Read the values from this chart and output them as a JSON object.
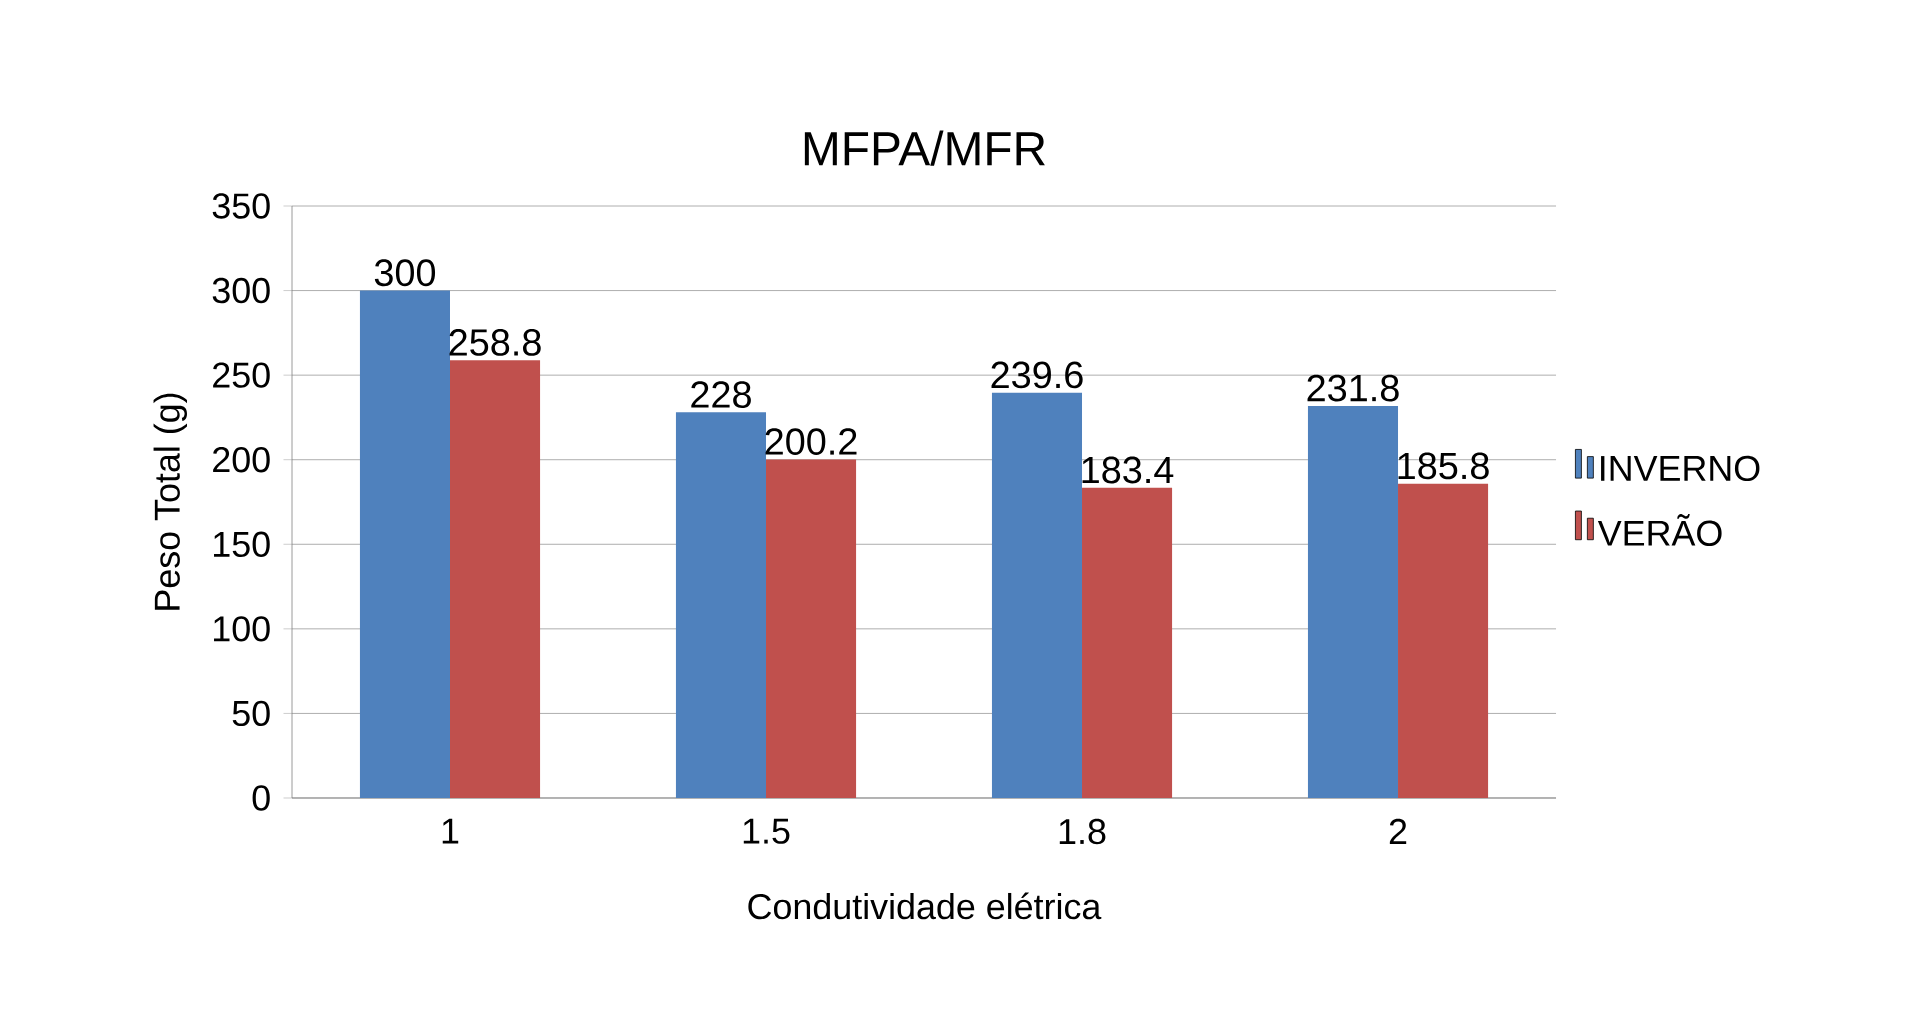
{
  "chart_data": {
    "type": "bar",
    "title": "MFPA/MFR",
    "xlabel": "Condutividade elétrica",
    "ylabel": "Peso Total (g)",
    "categories": [
      "1",
      "1.5",
      "1.8",
      "2"
    ],
    "series": [
      {
        "name": "INVERNO",
        "color": "#4f81bd",
        "values": [
          300,
          228,
          239.6,
          231.8
        ]
      },
      {
        "name": "VERÃO",
        "color": "#c0504d",
        "values": [
          258.8,
          200.2,
          183.4,
          185.8
        ]
      }
    ],
    "ylim": [
      0,
      350
    ],
    "yticks": [
      0,
      50,
      100,
      150,
      200,
      250,
      300,
      350
    ],
    "grid": "y",
    "legend": "right",
    "data_labels": true
  }
}
